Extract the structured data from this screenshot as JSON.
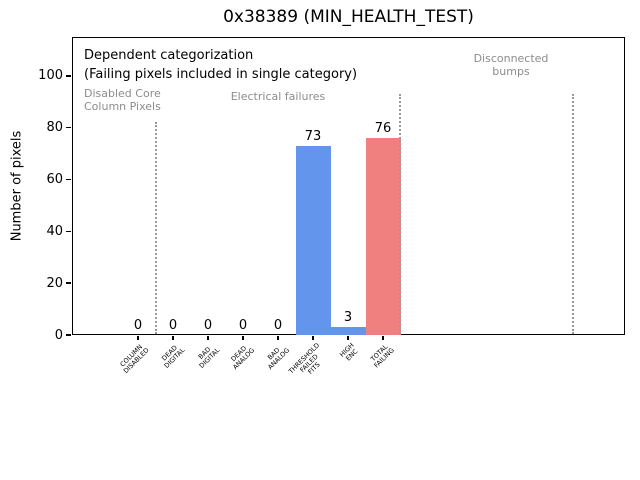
{
  "title": "0x38389 (MIN_HEALTH_TEST)",
  "chart_data": {
    "type": "bar",
    "title": "0x38389 (MIN_HEALTH_TEST)",
    "xlabel": "",
    "ylabel": "Number of pixels",
    "categories": [
      "COLUMN\nDISABLED",
      "DEAD\nDIGITAL",
      "BAD\nDIGITAL",
      "DEAD\nANALOG",
      "BAD\nANALOG",
      "THRESHOLD\nFAILED\nFITS",
      "HIGH\nENC",
      "TOTAL\nFAILING"
    ],
    "values": [
      0,
      0,
      0,
      0,
      0,
      73,
      3,
      76
    ],
    "bar_labels": [
      "0",
      "0",
      "0",
      "0",
      "0",
      "73",
      "3",
      "76"
    ],
    "bar_colors": [
      "#6495ED",
      "#6495ED",
      "#6495ED",
      "#6495ED",
      "#6495ED",
      "#6495ED",
      "#6495ED",
      "#F08080"
    ],
    "yticks": [
      0,
      20,
      40,
      60,
      80,
      100
    ],
    "ylim": [
      0,
      115
    ],
    "grid": false,
    "legend": null,
    "annotations": {
      "dependent_line1": "Dependent categorization",
      "dependent_line2": "(Failing pixels included in single category)",
      "section_disabled": "Disabled Core\nColumn Pixels",
      "section_electrical": "Electrical failures",
      "section_disconnected": "Disconnected\nbumps"
    },
    "colors": {
      "bar_blue": "#6495ED",
      "bar_red": "#F08080",
      "annotation_gray": "#8c8c8c",
      "divider_gray": "#999999"
    }
  }
}
